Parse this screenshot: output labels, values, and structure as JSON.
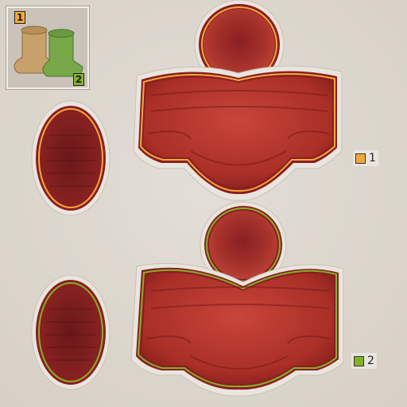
{
  "thumbnail": {
    "badge_left": "1",
    "badge_right": "2",
    "items": [
      {
        "name": "tan-boot",
        "color": "#c8a06a"
      },
      {
        "name": "green-boot",
        "color": "#77a84a"
      }
    ]
  },
  "groups": [
    {
      "label": "1",
      "outline_color": "#f2a93b"
    },
    {
      "label": "2",
      "outline_color": "#86b02a"
    }
  ],
  "colors": {
    "cloth": "#b5372b",
    "cloth_dark": "#6e1416",
    "border": "#e7e3dc"
  }
}
